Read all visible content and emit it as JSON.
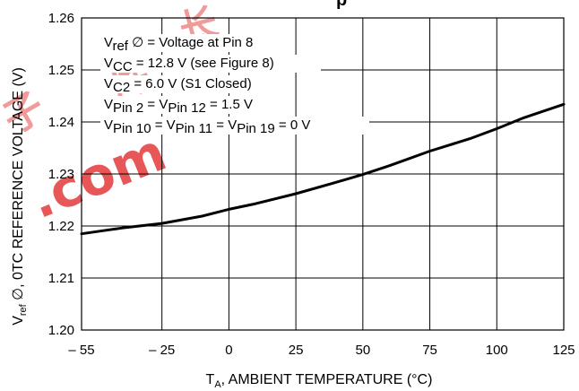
{
  "chart_data": {
    "type": "line",
    "title": "",
    "xlabel": {
      "main": "T",
      "sub": "A",
      "rest": ", AMBIENT TEMPERATURE (°C)"
    },
    "ylabel": {
      "main": "V",
      "sub": "ref",
      "rest": " ∅, 0TC REFERENCE VOLTAGE (V)"
    },
    "xlim": [
      -55,
      125
    ],
    "ylim": [
      1.2,
      1.26
    ],
    "x_ticks": [
      -55,
      -25,
      0,
      25,
      50,
      75,
      100,
      125
    ],
    "x_tick_labels": [
      "– 55",
      "– 25",
      "0",
      "25",
      "50",
      "75",
      "100",
      "125"
    ],
    "y_ticks": [
      1.2,
      1.21,
      1.22,
      1.23,
      1.24,
      1.25,
      1.26
    ],
    "y_tick_labels": [
      "1.20",
      "1.21",
      "1.22",
      "1.23",
      "1.24",
      "1.25",
      "1.26"
    ],
    "grid": true,
    "series": [
      {
        "x": [
          -55,
          -40,
          -25,
          -10,
          0,
          10,
          25,
          40,
          50,
          60,
          75,
          90,
          100,
          110,
          125
        ],
        "y": [
          1.2185,
          1.2196,
          1.2205,
          1.2219,
          1.2232,
          1.2243,
          1.2262,
          1.2284,
          1.2299,
          1.2316,
          1.2344,
          1.2368,
          1.2387,
          1.2408,
          1.2434
        ]
      }
    ],
    "annotations": [
      [
        {
          "t": "V"
        },
        {
          "t": "ref",
          "sub": true
        },
        {
          "t": " ∅ = Voltage at Pin 8"
        }
      ],
      [
        {
          "t": "V"
        },
        {
          "t": "CC",
          "sub": true
        },
        {
          "t": " = 12.8 V (see Figure 8)"
        }
      ],
      [
        {
          "t": "V"
        },
        {
          "t": "C2",
          "sub": true
        },
        {
          "t": " = 6.0 V (S1 Closed)"
        }
      ],
      [
        {
          "t": "V"
        },
        {
          "t": "Pin 2",
          "sub": true
        },
        {
          "t": " = V"
        },
        {
          "t": "Pin 12",
          "sub": true
        },
        {
          "t": " = 1.5 V"
        }
      ],
      [
        {
          "t": "V"
        },
        {
          "t": "Pin 10",
          "sub": true
        },
        {
          "t": " = V"
        },
        {
          "t": "Pin 11",
          "sub": true
        },
        {
          "t": " = V"
        },
        {
          "t": "Pin 19",
          "sub": true
        },
        {
          "t": " = 0 V"
        }
      ]
    ],
    "partial_title": "p",
    "watermark": [
      ".com",
      "子",
      "库",
      "长"
    ],
    "colors": {
      "line": "#000000",
      "grid": "#000000",
      "watermark": "#e02020"
    }
  }
}
